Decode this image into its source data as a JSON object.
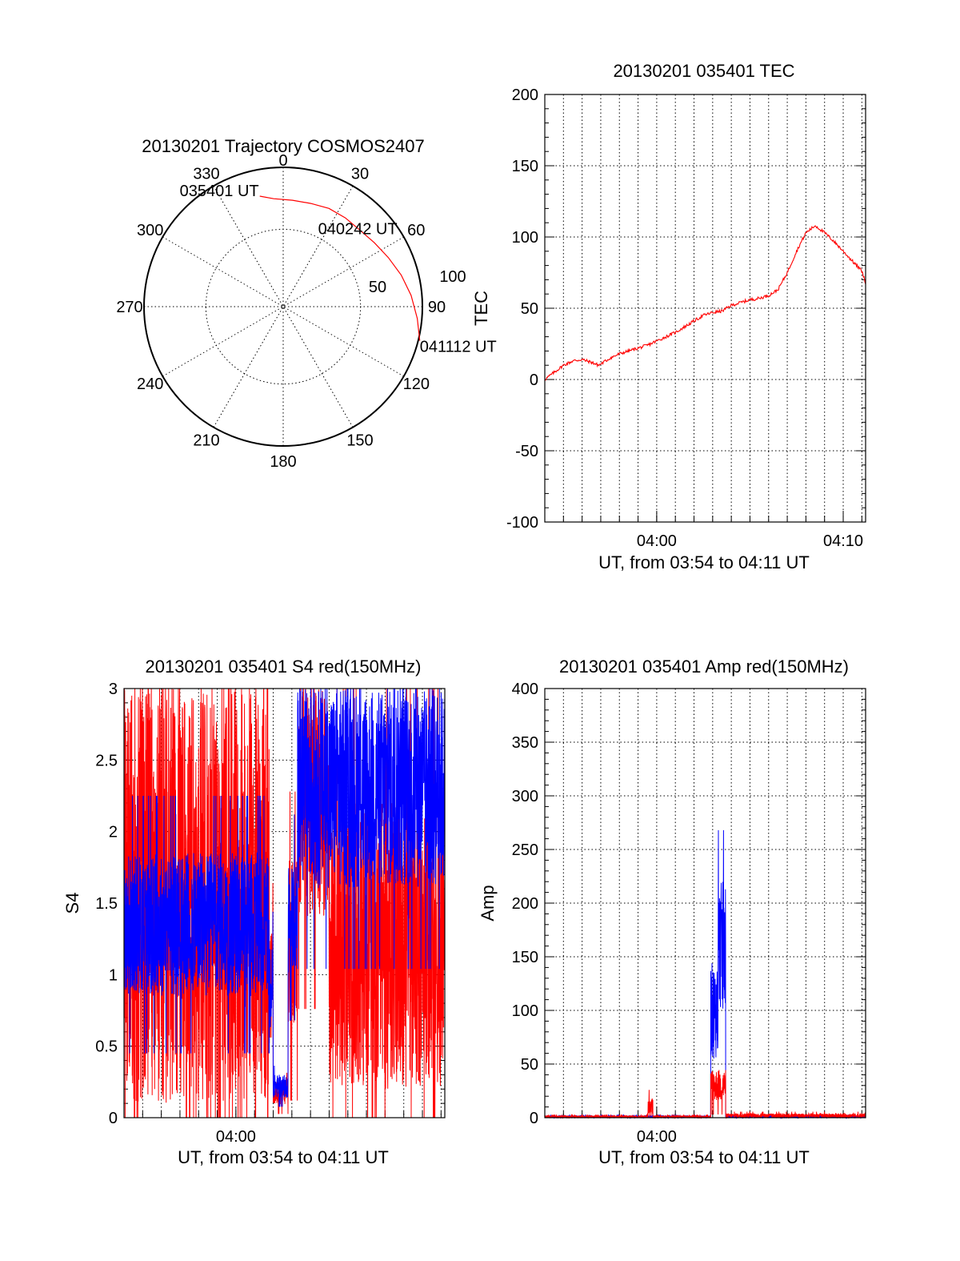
{
  "chart_data": [
    {
      "type": "polar",
      "title": "20130201 Trajectory COSMOS2407",
      "azimuth_labels": [
        "0",
        "30",
        "60",
        "90",
        "120",
        "150",
        "180",
        "210",
        "240",
        "270",
        "300",
        "330"
      ],
      "radial_labels": [
        "50",
        "100"
      ],
      "trajectory": {
        "color": "#ff0000",
        "points": [
          {
            "azimuth": 348,
            "zenith": 73
          },
          {
            "azimuth": 355,
            "zenith": 70
          },
          {
            "azimuth": 5,
            "zenith": 69
          },
          {
            "azimuth": 15,
            "zenith": 69
          },
          {
            "azimuth": 25,
            "zenith": 70
          },
          {
            "azimuth": 35,
            "zenith": 70
          },
          {
            "azimuth": 45,
            "zenith": 70
          },
          {
            "azimuth": 55,
            "zenith": 72
          },
          {
            "azimuth": 65,
            "zenith": 75
          },
          {
            "azimuth": 75,
            "zenith": 79
          },
          {
            "azimuth": 85,
            "zenith": 83
          },
          {
            "azimuth": 95,
            "zenith": 87
          },
          {
            "azimuth": 104,
            "zenith": 91
          }
        ],
        "labels": [
          {
            "text": "035401 UT",
            "azimuth": 348,
            "zenith": 73
          },
          {
            "text": "040242 UT",
            "azimuth": 42,
            "zenith": 70
          },
          {
            "text": "041112 UT",
            "azimuth": 104,
            "zenith": 91
          }
        ]
      }
    },
    {
      "type": "line",
      "title": "20130201 035401 TEC",
      "xlabel": "UT, from 03:54 to 04:11 UT",
      "ylabel": "TEC",
      "xlim": [
        234,
        251.2
      ],
      "ylim": [
        -100,
        200
      ],
      "yticks": [
        -100,
        -50,
        0,
        50,
        100,
        150,
        200
      ],
      "xticks": [
        {
          "value": 240,
          "label": "04:00"
        },
        {
          "value": 250,
          "label": "04:10"
        }
      ],
      "grid": true,
      "series": [
        {
          "color": "#ff0000",
          "x": [
            234.0,
            234.5,
            235.0,
            235.5,
            236.0,
            236.5,
            236.9,
            237.5,
            238.0,
            238.5,
            239.0,
            239.5,
            240.0,
            240.5,
            241.0,
            241.5,
            242.0,
            242.5,
            243.0,
            243.5,
            244.0,
            244.5,
            245.0,
            245.5,
            246.0,
            246.5,
            247.0,
            247.5,
            248.0,
            248.5,
            249.0,
            249.5,
            250.0,
            250.5,
            251.0,
            251.2
          ],
          "y": [
            0,
            5,
            10,
            13,
            14,
            12,
            10,
            15,
            18,
            20,
            22,
            24,
            27,
            30,
            33,
            37,
            41,
            45,
            47,
            48,
            52,
            54,
            56,
            57,
            59,
            63,
            75,
            90,
            103,
            108,
            103,
            97,
            90,
            83,
            76,
            68
          ]
        }
      ]
    },
    {
      "type": "line",
      "title": "20130201 035401 S4 red(150MHz)",
      "xlabel": "UT, from 03:54 to 04:11 UT",
      "ylabel": "S4",
      "xlim": [
        234,
        251.2
      ],
      "ylim": [
        0,
        3
      ],
      "yticks": [
        "0",
        "0.5",
        "1",
        "1.5",
        "2",
        "2.5",
        "3"
      ],
      "xticks": [
        {
          "value": 240,
          "label": "04:00"
        }
      ],
      "grid": true,
      "series": [
        {
          "color": "#ff0000",
          "segments": [
            {
              "from": 234.0,
              "to": 241.8,
              "base": 1.55,
              "spread": 1.45
            },
            {
              "from": 241.8,
              "to": 242.0,
              "base": 1.1,
              "spread": 0.3
            },
            {
              "from": 242.0,
              "to": 242.8,
              "base": 0.17,
              "spread": 0.08
            },
            {
              "from": 242.8,
              "to": 243.3,
              "base": 1.2,
              "spread": 0.6
            },
            {
              "from": 243.3,
              "to": 245.0,
              "base": 2.2,
              "spread": 0.8
            },
            {
              "from": 245.0,
              "to": 251.2,
              "base": 1.2,
              "spread": 1.0
            }
          ]
        },
        {
          "color": "#0000ff",
          "segments": [
            {
              "from": 234.0,
              "to": 241.8,
              "base": 1.35,
              "spread": 0.5
            },
            {
              "from": 241.8,
              "to": 242.0,
              "base": 0.9,
              "spread": 0.3
            },
            {
              "from": 242.0,
              "to": 242.8,
              "base": 0.22,
              "spread": 0.08
            },
            {
              "from": 242.8,
              "to": 243.3,
              "base": 1.4,
              "spread": 0.4
            },
            {
              "from": 243.3,
              "to": 251.2,
              "base": 2.3,
              "spread": 0.7
            }
          ]
        }
      ]
    },
    {
      "type": "line",
      "title": "20130201 035401 Amp red(150MHz)",
      "xlabel": "UT, from 03:54 to 04:11 UT",
      "ylabel": "Amp",
      "xlim": [
        234,
        251.2
      ],
      "ylim": [
        0,
        400
      ],
      "yticks": [
        0,
        50,
        100,
        150,
        200,
        250,
        300,
        350,
        400
      ],
      "xticks": [
        {
          "value": 240,
          "label": "04:00"
        }
      ],
      "grid": true,
      "series": [
        {
          "color": "#ff0000",
          "segments": [
            {
              "from": 234.0,
              "to": 239.5,
              "base": 1,
              "spread": 1
            },
            {
              "from": 239.5,
              "to": 239.8,
              "base": 8,
              "spread": 10
            },
            {
              "from": 239.8,
              "to": 242.9,
              "base": 1,
              "spread": 1
            },
            {
              "from": 242.9,
              "to": 243.7,
              "base": 30,
              "spread": 15
            },
            {
              "from": 243.7,
              "to": 251.2,
              "base": 2,
              "spread": 2
            }
          ]
        },
        {
          "color": "#0000ff",
          "segments": [
            {
              "from": 234.0,
              "to": 242.9,
              "base": 1,
              "spread": 1
            },
            {
              "from": 242.9,
              "to": 243.3,
              "base": 100,
              "spread": 45
            },
            {
              "from": 243.3,
              "to": 243.7,
              "base": 160,
              "spread": 60
            },
            {
              "from": 243.7,
              "to": 251.2,
              "base": 1,
              "spread": 1
            }
          ]
        }
      ]
    }
  ]
}
